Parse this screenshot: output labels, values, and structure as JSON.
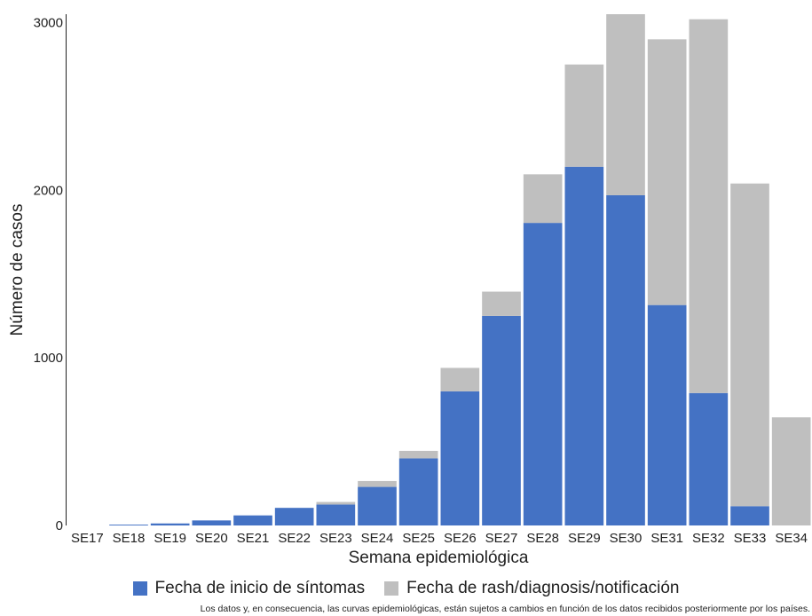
{
  "chart_data": {
    "type": "bar",
    "stacked": true,
    "categories": [
      "SE17",
      "SE18",
      "SE19",
      "SE20",
      "SE21",
      "SE22",
      "SE23",
      "SE24",
      "SE25",
      "SE26",
      "SE27",
      "SE28",
      "SE29",
      "SE30",
      "SE31",
      "SE32",
      "SE33",
      "SE34"
    ],
    "series": [
      {
        "name": "Fecha de inicio de síntomas",
        "color": "#4472c4",
        "values": [
          0,
          5,
          12,
          30,
          60,
          105,
          125,
          230,
          400,
          800,
          1250,
          1805,
          2140,
          1970,
          1315,
          790,
          115,
          0
        ]
      },
      {
        "name": "Fecha de rash/diagnosis/notificación",
        "color": "#bfbfbf",
        "values": [
          0,
          0,
          0,
          0,
          0,
          0,
          15,
          35,
          45,
          140,
          145,
          290,
          610,
          1080,
          1585,
          2230,
          1925,
          645
        ]
      }
    ],
    "xlabel": "Semana epidemiológica",
    "ylabel": "Número de casos",
    "yticks": [
      0,
      1000,
      2000,
      3000
    ],
    "ylim": [
      0,
      3050
    ],
    "grid": false,
    "legend_position": "bottom"
  },
  "legend": {
    "items": [
      {
        "label": "Fecha de inicio de síntomas",
        "color": "#4472c4"
      },
      {
        "label": "Fecha de rash/diagnosis/notificación",
        "color": "#bfbfbf"
      }
    ]
  },
  "footnote": "Los datos y, en consecuencia, las curvas epidemiológicas, están sujetos a cambios en función de los datos recibidos posteriormente por los países."
}
